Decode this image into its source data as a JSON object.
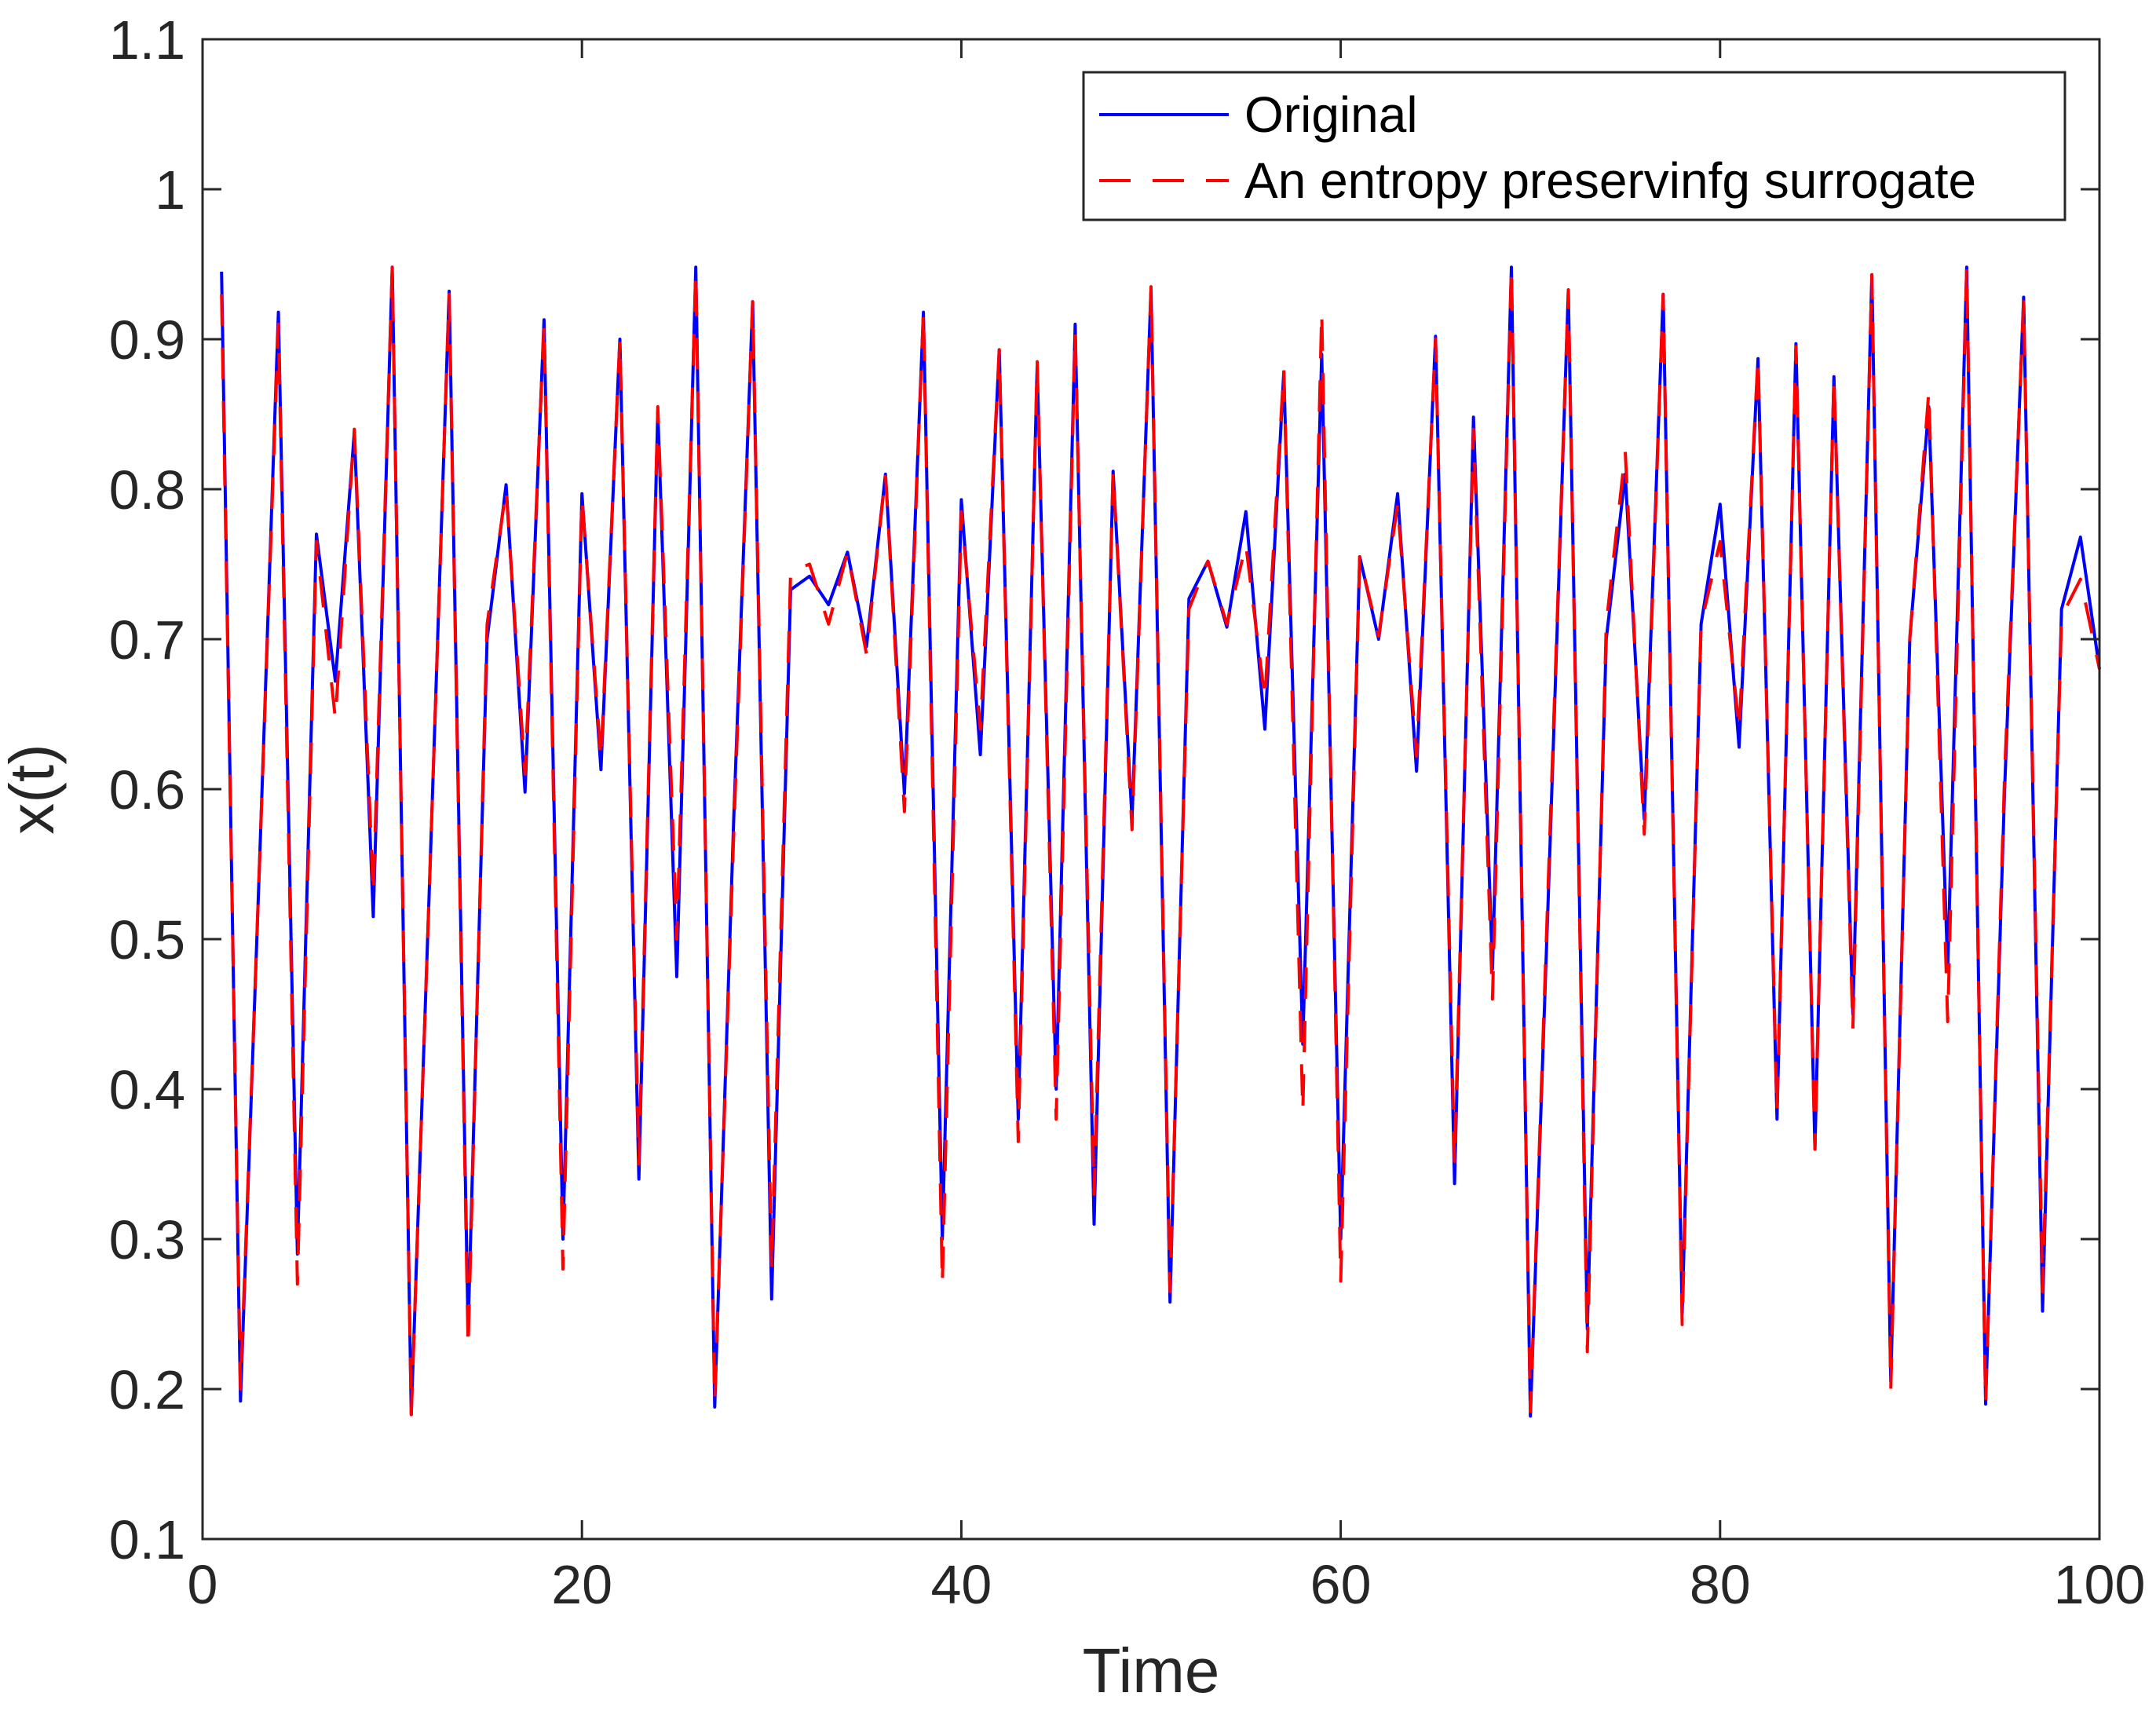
{
  "chart_data": {
    "type": "line",
    "title": "",
    "xlabel": "Time",
    "ylabel": "x(t)",
    "xlim": [
      0,
      100
    ],
    "ylim": [
      0.1,
      1.1
    ],
    "xticks": [
      0,
      20,
      40,
      60,
      80,
      100
    ],
    "xtick_labels": [
      "0",
      "20",
      "40",
      "60",
      "80",
      "100"
    ],
    "yticks": [
      0.1,
      0.2,
      0.3,
      0.4,
      0.5,
      0.6,
      0.7,
      0.8,
      0.9,
      1.0,
      1.1
    ],
    "ytick_labels": [
      "0.1",
      "0.2",
      "0.3",
      "0.4",
      "0.5",
      "0.6",
      "0.7",
      "0.8",
      "0.9",
      "1",
      "1.1"
    ],
    "grid": false,
    "legend_position": "top-right",
    "x": [
      1,
      2,
      3,
      4,
      5,
      6,
      7,
      8,
      9,
      10,
      11,
      12,
      13,
      14,
      15,
      16,
      17,
      18,
      19,
      20,
      21,
      22,
      23,
      24,
      25,
      26,
      27,
      28,
      29,
      30,
      31,
      32,
      33,
      34,
      35,
      36,
      37,
      38,
      39,
      40,
      41,
      42,
      43,
      44,
      45,
      46,
      47,
      48,
      49,
      50,
      51,
      52,
      53,
      54,
      55,
      56,
      57,
      58,
      59,
      60,
      61,
      62,
      63,
      64,
      65,
      66,
      67,
      68,
      69,
      70,
      71,
      72,
      73,
      74,
      75,
      76,
      77,
      78,
      79,
      80,
      81,
      82,
      83,
      84,
      85,
      86,
      87,
      88,
      89,
      90,
      91,
      92,
      93,
      94,
      95,
      96,
      97,
      98,
      99,
      100
    ],
    "series": [
      {
        "name": "Original",
        "color": "#0000ff",
        "style": "solid",
        "values": [
          0.945,
          0.192,
          0.55,
          0.918,
          0.29,
          0.77,
          0.672,
          0.838,
          0.515,
          0.948,
          0.183,
          0.55,
          0.932,
          0.24,
          0.7,
          0.803,
          0.598,
          0.913,
          0.3,
          0.797,
          0.613,
          0.9,
          0.34,
          0.852,
          0.475,
          0.948,
          0.188,
          0.58,
          0.925,
          0.26,
          0.733,
          0.742,
          0.723,
          0.758,
          0.695,
          0.81,
          0.597,
          0.918,
          0.3,
          0.793,
          0.623,
          0.893,
          0.38,
          0.882,
          0.4,
          0.91,
          0.31,
          0.812,
          0.58,
          0.933,
          0.258,
          0.727,
          0.752,
          0.708,
          0.785,
          0.64,
          0.878,
          0.43,
          0.89,
          0.3,
          0.755,
          0.7,
          0.797,
          0.612,
          0.902,
          0.337,
          0.848,
          0.48,
          0.948,
          0.182,
          0.55,
          0.932,
          0.24,
          0.7,
          0.81,
          0.58,
          0.93,
          0.25,
          0.71,
          0.79,
          0.628,
          0.887,
          0.38,
          0.897,
          0.36,
          0.875,
          0.45,
          0.943,
          0.205,
          0.7,
          0.855,
          0.48,
          0.948,
          0.19,
          0.6,
          0.928,
          0.252,
          0.72,
          0.768,
          0.68
        ]
      },
      {
        "name": "An entropy preservinfg surrogate",
        "color": "#ff0000",
        "style": "dashed",
        "values": [
          0.93,
          0.2,
          0.55,
          0.91,
          0.27,
          0.765,
          0.647,
          0.84,
          0.53,
          0.948,
          0.183,
          0.55,
          0.93,
          0.228,
          0.71,
          0.8,
          0.61,
          0.91,
          0.28,
          0.795,
          0.62,
          0.9,
          0.35,
          0.855,
          0.5,
          0.945,
          0.192,
          0.57,
          0.925,
          0.28,
          0.745,
          0.75,
          0.71,
          0.758,
          0.69,
          0.81,
          0.585,
          0.918,
          0.27,
          0.785,
          0.64,
          0.893,
          0.365,
          0.885,
          0.38,
          0.905,
          0.33,
          0.812,
          0.573,
          0.935,
          0.265,
          0.72,
          0.752,
          0.71,
          0.763,
          0.66,
          0.88,
          0.385,
          0.918,
          0.272,
          0.755,
          0.702,
          0.79,
          0.622,
          0.9,
          0.35,
          0.84,
          0.46,
          0.948,
          0.185,
          0.56,
          0.933,
          0.225,
          0.71,
          0.825,
          0.57,
          0.93,
          0.243,
          0.71,
          0.765,
          0.64,
          0.888,
          0.385,
          0.895,
          0.36,
          0.875,
          0.44,
          0.943,
          0.2,
          0.7,
          0.865,
          0.445,
          0.948,
          0.19,
          0.61,
          0.925,
          0.265,
          0.715,
          0.74,
          0.68
        ]
      }
    ]
  }
}
